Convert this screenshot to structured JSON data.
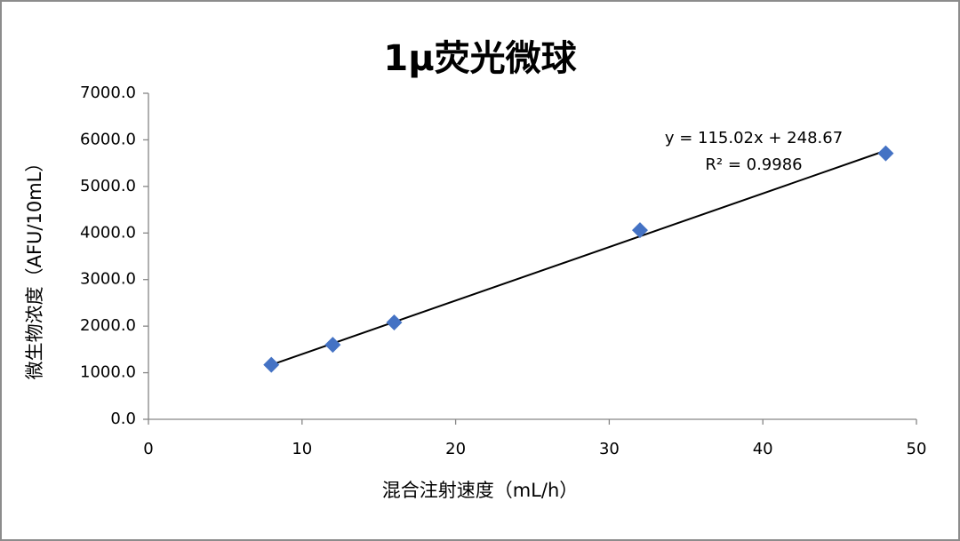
{
  "chart_data": {
    "type": "scatter",
    "title": "1μ荧光微球",
    "x_label": "混合注射速度（mL/h）",
    "y_label": "微生物浓度（AFU/10mL）",
    "x": [
      8,
      12,
      16,
      32,
      48
    ],
    "series": [
      {
        "name": null,
        "color": "#4472c4",
        "values": [
          1170,
          1600,
          2080,
          4060,
          5710
        ]
      }
    ],
    "trendline": {
      "slope": 115.02,
      "intercept": 248.67,
      "color": "#000000"
    },
    "annotations": [
      "y = 115.02x + 248.67",
      "R² = 0.9986"
    ],
    "xlim": [
      0,
      50
    ],
    "xticks": [
      0,
      10,
      20,
      30,
      40,
      50
    ],
    "ylim": [
      0,
      7000
    ],
    "yticks": [
      {
        "value": 0,
        "label": "0.0"
      },
      {
        "value": 1000,
        "label": "1000.0"
      },
      {
        "value": 2000,
        "label": "2000.0"
      },
      {
        "value": 3000,
        "label": "3000.0"
      },
      {
        "value": 4000,
        "label": "4000.0"
      },
      {
        "value": 5000,
        "label": "5000.0"
      },
      {
        "value": 6000,
        "label": "6000.0"
      },
      {
        "value": 7000,
        "label": "7000.0"
      }
    ],
    "grid": false
  }
}
